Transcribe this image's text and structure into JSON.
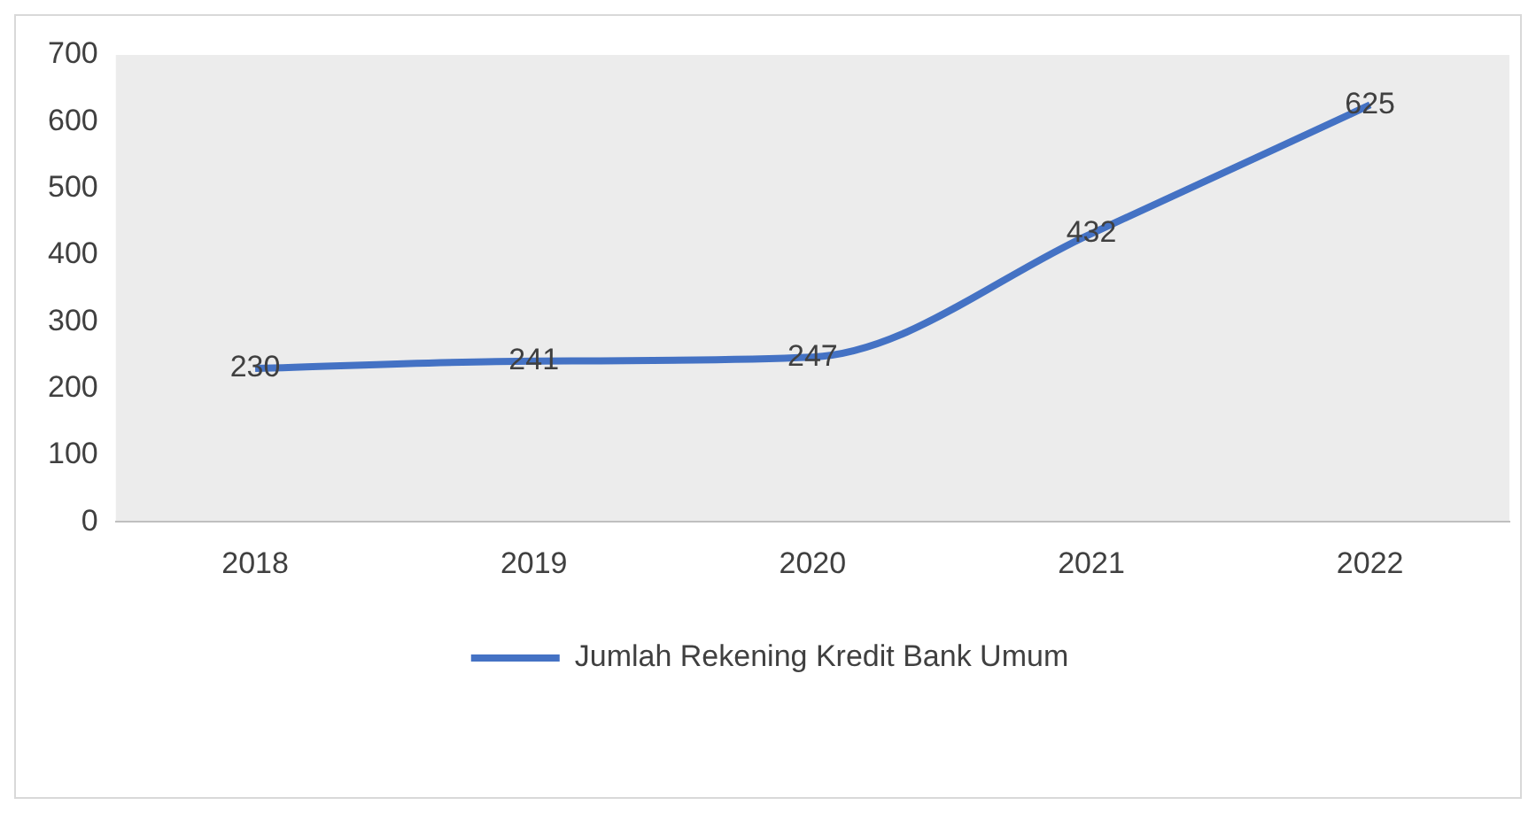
{
  "chart_data": {
    "type": "line",
    "categories": [
      "2018",
      "2019",
      "2020",
      "2021",
      "2022"
    ],
    "series": [
      {
        "name": "Jumlah Rekening Kredit Bank Umum",
        "color": "#4472c4",
        "values": [
          230,
          241,
          247,
          432,
          625
        ]
      }
    ],
    "ylim": [
      0,
      700
    ],
    "yticks": [
      0,
      100,
      200,
      300,
      400,
      500,
      600,
      700
    ],
    "grid": false,
    "legend": "bottom",
    "data_labels": true,
    "marker": "none",
    "line_style": "solid"
  }
}
